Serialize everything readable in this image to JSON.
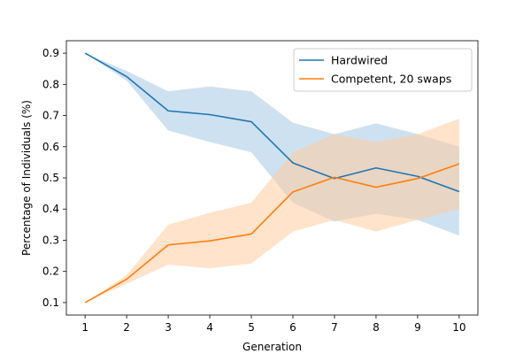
{
  "chart_data": {
    "type": "line",
    "title": "",
    "xlabel": "Generation",
    "ylabel": "Percentage of Individuals (%)",
    "x": [
      1,
      2,
      3,
      4,
      5,
      6,
      7,
      8,
      9,
      10
    ],
    "xlim": [
      0.55,
      10.45
    ],
    "ylim": [
      0.06,
      0.94
    ],
    "xticks": [
      "1",
      "2",
      "3",
      "4",
      "5",
      "6",
      "7",
      "8",
      "9",
      "10"
    ],
    "yticks": [
      "0.1",
      "0.2",
      "0.3",
      "0.4",
      "0.5",
      "0.6",
      "0.7",
      "0.8",
      "0.9"
    ],
    "grid": false,
    "legend_position": "top-right",
    "series": [
      {
        "name": "Hardwired",
        "color": "#1f77b4",
        "band_color": "#a6c8e4",
        "values": [
          0.9,
          0.825,
          0.715,
          0.703,
          0.68,
          0.548,
          0.498,
          0.532,
          0.505,
          0.456
        ],
        "lower": [
          0.9,
          0.812,
          0.652,
          0.615,
          0.582,
          0.42,
          0.36,
          0.385,
          0.365,
          0.315
        ],
        "upper": [
          0.9,
          0.843,
          0.778,
          0.793,
          0.778,
          0.677,
          0.64,
          0.675,
          0.64,
          0.6
        ]
      },
      {
        "name": "Competent, 20 swaps",
        "color": "#ff7f0e",
        "band_color": "#ffcc9e",
        "values": [
          0.1,
          0.175,
          0.285,
          0.298,
          0.32,
          0.455,
          0.502,
          0.47,
          0.498,
          0.545
        ],
        "lower": [
          0.1,
          0.16,
          0.222,
          0.21,
          0.225,
          0.328,
          0.365,
          0.328,
          0.365,
          0.4
        ],
        "upper": [
          0.1,
          0.188,
          0.35,
          0.388,
          0.42,
          0.582,
          0.64,
          0.615,
          0.64,
          0.69
        ]
      }
    ]
  }
}
